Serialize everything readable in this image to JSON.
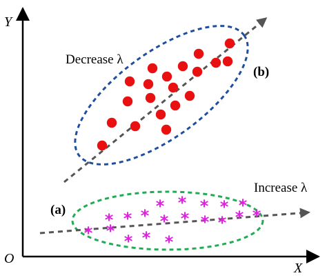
{
  "axes": {
    "y_label": "Y",
    "x_label": "X",
    "origin_label": "O"
  },
  "cluster_b": {
    "tag": "(b)",
    "annotation": "Decrease λ",
    "point_color": "#e81010",
    "ellipse_color": "#1f4e9e",
    "arrow_color": "#555555",
    "point_count": 20
  },
  "cluster_a": {
    "tag": "(a)",
    "annotation": "Increase λ",
    "marker_glyph": "*",
    "point_color": "#e020e0",
    "ellipse_color": "#22aa55",
    "arrow_color": "#555555",
    "point_count": 19
  },
  "colors": {
    "axis": "#000000"
  }
}
